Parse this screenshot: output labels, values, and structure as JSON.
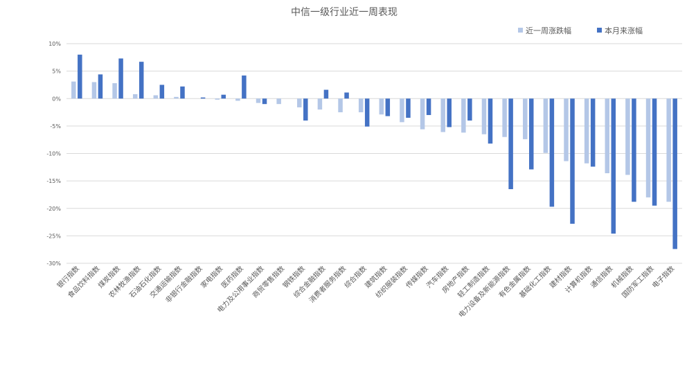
{
  "chart_data": {
    "type": "bar",
    "title": "中信一级行业近一周表现",
    "xlabel": "",
    "ylabel": "",
    "ylim": [
      -30,
      10
    ],
    "yticks": [
      10,
      5,
      0,
      -5,
      -10,
      -15,
      -20,
      -25,
      -30
    ],
    "ytick_labels": [
      "10%",
      "5%",
      "0%",
      "-5%",
      "-10%",
      "-15%",
      "-20%",
      "-25%",
      "-30%"
    ],
    "grid": true,
    "legend_position": "top-right",
    "categories": [
      "银行指数",
      "食品饮料指数",
      "煤炭指数",
      "农林牧渔指数",
      "石油石化指数",
      "交通运输指数",
      "非银行金融指数",
      "家电指数",
      "医药指数",
      "电力及公用事业指数",
      "商贸零售指数",
      "钢铁指数",
      "综合金融指数",
      "消费者服务指数",
      "综合指数",
      "建筑指数",
      "纺织服装指数",
      "传媒指数",
      "汽车指数",
      "房地产指数",
      "轻工制造指数",
      "电力设备及新能源指数",
      "有色金属指数",
      "基础化工指数",
      "建材指数",
      "计算机指数",
      "通信指数",
      "机械指数",
      "国防军工指数",
      "电子指数"
    ],
    "series": [
      {
        "name": "近一周涨跌幅",
        "color": "#b4c7e7",
        "values": [
          3.1,
          3.0,
          2.8,
          0.8,
          0.6,
          0.3,
          0.0,
          -0.2,
          -0.4,
          -0.8,
          -1.0,
          -1.6,
          -2.0,
          -2.5,
          -2.5,
          -2.9,
          -4.3,
          -5.6,
          -6.1,
          -6.2,
          -6.5,
          -7.0,
          -7.4,
          -9.9,
          -11.4,
          -11.8,
          -13.6,
          -13.9,
          -18.0,
          -18.8
        ]
      },
      {
        "name": "本月来涨幅",
        "color": "#4472c4",
        "values": [
          8.0,
          4.4,
          7.3,
          6.7,
          2.5,
          2.2,
          0.2,
          0.7,
          4.2,
          -1.0,
          0.0,
          -4.0,
          1.6,
          1.1,
          -5.1,
          -3.2,
          -3.5,
          -3.0,
          -5.2,
          -4.0,
          -8.2,
          -16.5,
          -12.9,
          -19.7,
          -22.8,
          -12.4,
          -24.6,
          -18.8,
          -19.5,
          -27.4
        ]
      }
    ]
  }
}
